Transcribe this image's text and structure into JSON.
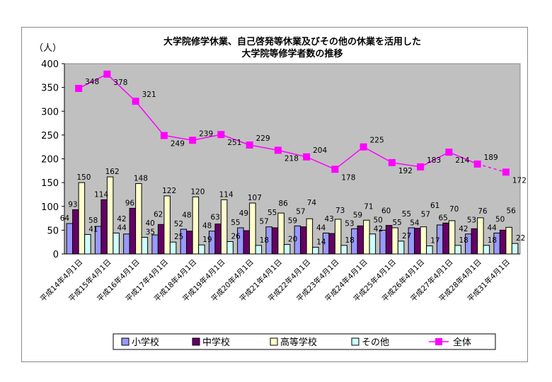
{
  "chart_data": {
    "type": "bar",
    "title_lines": [
      "大学院修学休業、自己啓発等休業及びその他の休業を活用した",
      "大学院等修学者数の推移"
    ],
    "ylabel": "（人）",
    "ylim": [
      0,
      400
    ],
    "yticks": [
      0,
      50,
      100,
      150,
      200,
      250,
      300,
      350,
      400
    ],
    "grid": false,
    "legend_position": "bottom",
    "categories": [
      "平成14年4月1日",
      "平成15年4月1日",
      "平成16年4月1日",
      "平成17年4月1日",
      "平成18年4月1日",
      "平成19年4月1日",
      "平成20年4月1日",
      "平成21年4月1日",
      "平成22年4月1日",
      "平成23年4月1日",
      "平成24年4月1日",
      "平成25年4月1日",
      "平成26年4月1日",
      "平成27年4月1日",
      "平成28年4月1日",
      "平成31年4月1日"
    ],
    "series": [
      {
        "name": "小学校",
        "type": "bar",
        "color": "#9999ff",
        "values": [
          64,
          58,
          42,
          40,
          52,
          48,
          55,
          57,
          59,
          44,
          53,
          50,
          55,
          61,
          42,
          44
        ]
      },
      {
        "name": "中学校",
        "type": "bar",
        "color": "#660066",
        "values": [
          93,
          114,
          96,
          62,
          48,
          63,
          49,
          55,
          57,
          43,
          59,
          60,
          54,
          65,
          53,
          50
        ]
      },
      {
        "name": "高等学校",
        "type": "bar",
        "color": "#ffffcc",
        "values": [
          150,
          162,
          148,
          122,
          120,
          114,
          107,
          86,
          74,
          73,
          71,
          55,
          57,
          70,
          76,
          56
        ]
      },
      {
        "name": "その他",
        "type": "bar",
        "color": "#ccffff",
        "values": [
          41,
          44,
          35,
          25,
          19,
          26,
          18,
          20,
          14,
          18,
          42,
          27,
          17,
          18,
          18,
          22
        ]
      },
      {
        "name": "全体",
        "type": "line",
        "color": "#ff00ff",
        "values": [
          348,
          378,
          321,
          249,
          239,
          251,
          229,
          218,
          204,
          178,
          225,
          192,
          183,
          214,
          189,
          172
        ]
      }
    ],
    "plot_background": "#c0c0c0"
  }
}
